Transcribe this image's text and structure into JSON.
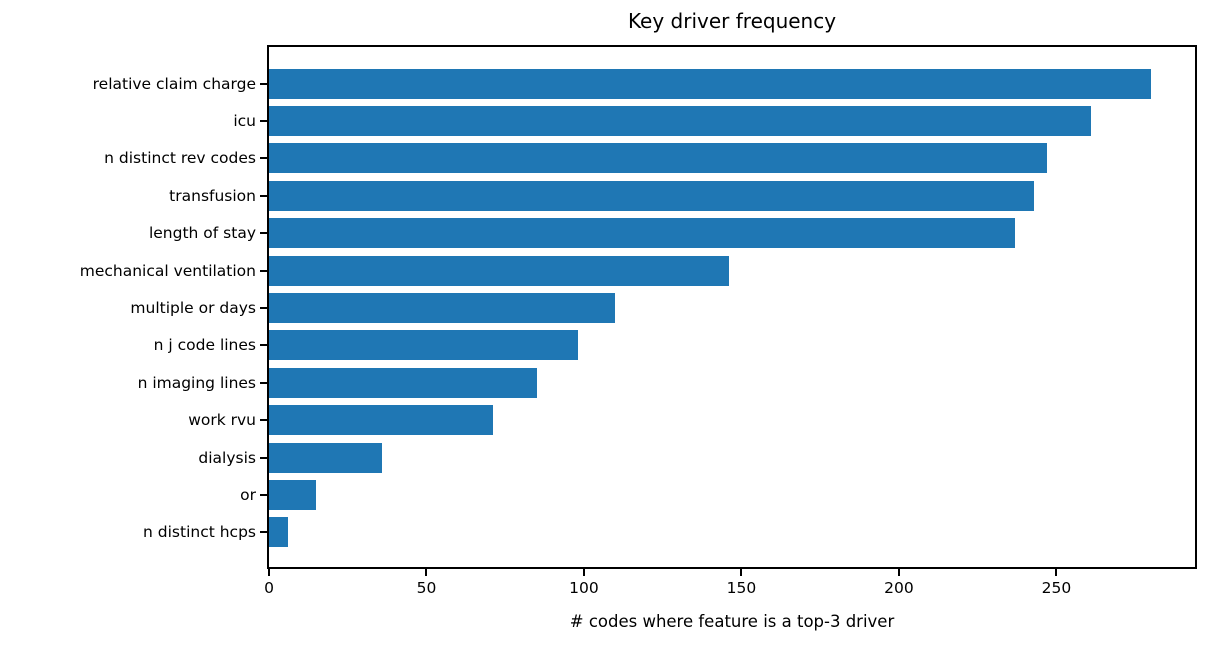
{
  "chart_data": {
    "type": "bar",
    "orientation": "horizontal",
    "title": "Key driver frequency",
    "xlabel": "# codes where feature is a top-3 driver",
    "ylabel": "",
    "categories": [
      "relative claim charge",
      "icu",
      "n distinct rev codes",
      "transfusion",
      "length of stay",
      "mechanical ventilation",
      "multiple or days",
      "n j code lines",
      "n imaging lines",
      "work rvu",
      "dialysis",
      "or",
      "n distinct hcps"
    ],
    "values": [
      280,
      261,
      247,
      243,
      237,
      146,
      110,
      98,
      85,
      71,
      36,
      15,
      6
    ],
    "xticks": [
      0,
      50,
      100,
      150,
      200,
      250
    ],
    "xlim": [
      0,
      294
    ],
    "grid": false,
    "legend": null,
    "bar_color": "#1f77b4",
    "axis_color": "#000000",
    "text_color": "#000000",
    "background": "#ffffff"
  }
}
